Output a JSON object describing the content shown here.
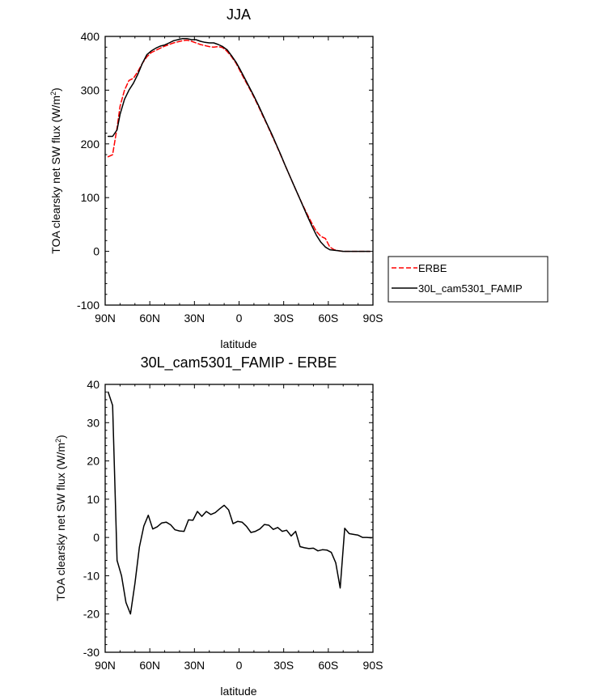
{
  "chart_data": [
    {
      "type": "line",
      "title": "JJA",
      "xlabel": "latitude",
      "ylabel_main": "TOA clearsky net SW flux (W/m",
      "ylabel_sup": "2",
      "ylabel_close": ")",
      "xlim": [
        90,
        -90
      ],
      "ylim": [
        -100,
        400
      ],
      "xticks": [
        90,
        60,
        30,
        0,
        -30,
        -60,
        -90
      ],
      "xtick_labels": [
        "90N",
        "60N",
        "30N",
        "0",
        "30S",
        "60S",
        "90S"
      ],
      "yticks": [
        -100,
        0,
        100,
        200,
        300,
        400
      ],
      "ytick_labels": [
        "-100",
        "0",
        "100",
        "200",
        "300",
        "400"
      ],
      "legend_position": "right",
      "series": [
        {
          "name": "ERBE",
          "color": "#ff0000",
          "dash": "dashed",
          "x": [
            88,
            85,
            82,
            80,
            77,
            74,
            71,
            68,
            65,
            62,
            59,
            56,
            53,
            50,
            47,
            44,
            41,
            38,
            35,
            32,
            29,
            26,
            23,
            20,
            17,
            14,
            11,
            8,
            5,
            2,
            -1,
            -4,
            -7,
            -10,
            -13,
            -16,
            -19,
            -22,
            -25,
            -28,
            -31,
            -34,
            -37,
            -40,
            -43,
            -46,
            -49,
            -52,
            -55,
            -58,
            -61,
            -64,
            -67,
            -70,
            -73,
            -76,
            -79,
            -82,
            -85,
            -88
          ],
          "y": [
            176,
            180,
            230,
            270,
            300,
            318,
            322,
            335,
            350,
            362,
            370,
            374,
            378,
            382,
            385,
            388,
            390,
            392,
            393,
            391,
            388,
            385,
            383,
            381,
            380,
            381,
            379,
            372,
            362,
            350,
            334,
            318,
            303,
            287,
            270,
            252,
            235,
            216,
            198,
            179,
            160,
            141,
            122,
            103,
            85,
            68,
            52,
            37,
            28,
            24,
            8,
            3,
            1,
            0,
            0,
            0,
            0,
            0,
            0,
            0
          ]
        },
        {
          "name": "30L_cam5301_FAMIP",
          "color": "#000000",
          "dash": "solid",
          "x": [
            88,
            85,
            82,
            80,
            77,
            74,
            71,
            68,
            65,
            62,
            59,
            56,
            53,
            50,
            47,
            44,
            41,
            38,
            35,
            32,
            29,
            26,
            23,
            20,
            17,
            14,
            11,
            8,
            5,
            2,
            -1,
            -4,
            -7,
            -10,
            -13,
            -16,
            -19,
            -22,
            -25,
            -28,
            -31,
            -34,
            -37,
            -40,
            -43,
            -46,
            -49,
            -52,
            -55,
            -58,
            -61,
            -64,
            -67,
            -70,
            -73,
            -76,
            -79,
            -82,
            -85,
            -88
          ],
          "y": [
            214,
            214,
            226,
            255,
            283,
            300,
            313,
            330,
            350,
            366,
            373,
            378,
            382,
            384,
            388,
            392,
            394,
            396,
            396,
            394,
            394,
            391,
            389,
            388,
            388,
            385,
            381,
            375,
            364,
            352,
            337,
            321,
            305,
            289,
            272,
            254,
            236,
            218,
            199,
            180,
            160,
            141,
            122,
            103,
            84,
            65,
            47,
            30,
            17,
            8,
            3,
            2,
            1,
            0,
            0,
            0,
            0,
            0,
            0,
            0
          ]
        }
      ]
    },
    {
      "type": "line",
      "title": "30L_cam5301_FAMIP - ERBE",
      "xlabel": "latitude",
      "ylabel_main": "TOA clearsky net SW flux (W/m",
      "ylabel_sup": "2",
      "ylabel_close": ")",
      "xlim": [
        90,
        -90
      ],
      "ylim": [
        -30,
        40
      ],
      "xticks": [
        90,
        60,
        30,
        0,
        -30,
        -60,
        -90
      ],
      "xtick_labels": [
        "90N",
        "60N",
        "30N",
        "0",
        "30S",
        "60S",
        "90S"
      ],
      "yticks": [
        -30,
        -20,
        -10,
        0,
        10,
        20,
        30,
        40
      ],
      "ytick_labels": [
        "-30",
        "-20",
        "-10",
        "0",
        "10",
        "20",
        "30",
        "40"
      ],
      "series": [
        {
          "name": "",
          "color": "#000000",
          "dash": "solid",
          "x": [
            88,
            85,
            82,
            79,
            76,
            73,
            70,
            67,
            64,
            61,
            58,
            55,
            52,
            49,
            46,
            43,
            40,
            37,
            34,
            31,
            28,
            25,
            22,
            19,
            16,
            13,
            10,
            7,
            4,
            1,
            -2,
            -5,
            -8,
            -11,
            -14,
            -17,
            -20,
            -23,
            -26,
            -29,
            -32,
            -35,
            -38,
            -41,
            -44,
            -47,
            -50,
            -53,
            -56,
            -59,
            -62,
            -65,
            -68,
            -71,
            -74,
            -77,
            -80,
            -83,
            -86,
            -89
          ],
          "y": [
            38,
            34.5,
            -6,
            -10,
            -17,
            -20,
            -12,
            -2.5,
            3,
            5.8,
            2.2,
            2.8,
            3.8,
            4,
            3.3,
            2,
            1.7,
            1.6,
            4.6,
            4.5,
            6.8,
            5.5,
            6.8,
            6,
            6.5,
            7.5,
            8.4,
            7.2,
            3.6,
            4.2,
            4,
            2.9,
            1.3,
            1.6,
            2.2,
            3.4,
            3.2,
            2.1,
            2.6,
            1.6,
            1.9,
            0.4,
            1.6,
            -2.4,
            -2.7,
            -2.9,
            -2.8,
            -3.5,
            -3.2,
            -3.3,
            -3.9,
            -6.6,
            -13.2,
            2.4,
            1,
            0.8,
            0.6,
            0,
            0,
            -0.1
          ]
        }
      ]
    }
  ]
}
